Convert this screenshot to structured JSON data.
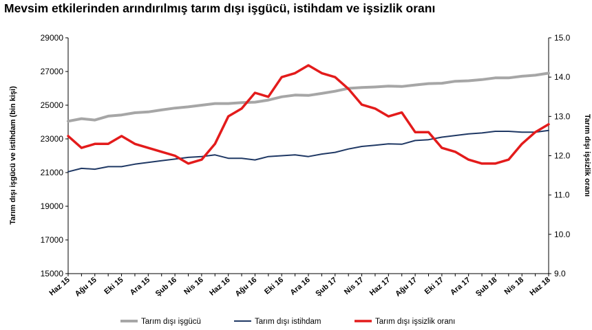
{
  "title": "Mevsim etkilerinden arındırılmış tarım dışı işgücü, istihdam ve işsizlik oranı",
  "chart_data": {
    "type": "line",
    "title": "Mevsim etkilerinden arındırılmış tarım dışı işgücü, istihdam ve işsizlik oranı",
    "ylabel": "Tarım dışı işgücü ve istihdam (bin kişi)",
    "y2label": "Tarım dışı işsizlik oranı",
    "ylim": [
      15000,
      29000
    ],
    "y2lim": [
      9.0,
      15.0
    ],
    "yticks": [
      "29000",
      "27000",
      "25000",
      "23000",
      "21000",
      "19000",
      "17000",
      "15000"
    ],
    "y2ticks": [
      "15.0",
      "14.0",
      "13.0",
      "12.0",
      "11.0",
      "10.0",
      "9.0"
    ],
    "categories": [
      "Haz 15",
      "Tem 15",
      "Ağu 15",
      "Eyl 15",
      "Eki 15",
      "Kas 15",
      "Ara 15",
      "Oca 16",
      "Şub 16",
      "Mar 16",
      "Nis 16",
      "May 16",
      "Haz 16",
      "Tem 16",
      "Ağu 16",
      "Eyl 16",
      "Eki 16",
      "Kas 16",
      "Ara 16",
      "Oca 17",
      "Şub 17",
      "Mar 17",
      "Nis 17",
      "May 17",
      "Haz 17",
      "Tem 17",
      "Ağu 17",
      "Eyl 17",
      "Eki 17",
      "Kas 17",
      "Ara 17",
      "Oca 18",
      "Şub 18",
      "Mar 18",
      "Nis 18",
      "May 18",
      "Haz 18"
    ],
    "tick_labels": [
      "Haz 15",
      "Ağu 15",
      "Eki 15",
      "Ara 15",
      "Şub 16",
      "Nis 16",
      "Haz 16",
      "Ağu 16",
      "Eki 16",
      "Ara 16",
      "Şub 17",
      "Nis 17",
      "Haz 17",
      "Ağu 17",
      "Eki 17",
      "Ara 17",
      "Şub 18",
      "Nis 18",
      "Haz 18"
    ],
    "series": [
      {
        "name": "Tarım dışı işgücü",
        "axis": "left",
        "color": "#a6a6a6",
        "values": [
          24050,
          24200,
          24120,
          24350,
          24420,
          24550,
          24600,
          24720,
          24830,
          24900,
          25000,
          25100,
          25100,
          25150,
          25180,
          25300,
          25500,
          25600,
          25580,
          25700,
          25830,
          26000,
          26050,
          26080,
          26130,
          26110,
          26200,
          26280,
          26300,
          26420,
          26450,
          26520,
          26620,
          26620,
          26720,
          26780,
          26900
        ]
      },
      {
        "name": "Tarım dışı istihdam",
        "axis": "left",
        "color": "#1f3864",
        "values": [
          21050,
          21250,
          21200,
          21350,
          21350,
          21500,
          21600,
          21700,
          21800,
          21900,
          21950,
          22050,
          21850,
          21850,
          21750,
          21950,
          22000,
          22050,
          21950,
          22100,
          22200,
          22400,
          22550,
          22620,
          22700,
          22680,
          22900,
          22950,
          23100,
          23200,
          23300,
          23350,
          23450,
          23450,
          23400,
          23400,
          23500
        ]
      },
      {
        "name": "Tarım dışı işsizlik oranı",
        "axis": "right",
        "color": "#e31b1b",
        "values": [
          12.5,
          12.2,
          12.3,
          12.3,
          12.5,
          12.3,
          12.2,
          12.1,
          12.0,
          11.8,
          11.9,
          12.3,
          13.0,
          13.2,
          13.6,
          13.5,
          14.0,
          14.1,
          14.3,
          14.1,
          14.0,
          13.7,
          13.3,
          13.2,
          13.0,
          13.1,
          12.6,
          12.6,
          12.2,
          12.1,
          11.9,
          11.8,
          11.8,
          11.9,
          12.3,
          12.6,
          12.8
        ]
      }
    ],
    "legend_position": "bottom"
  }
}
